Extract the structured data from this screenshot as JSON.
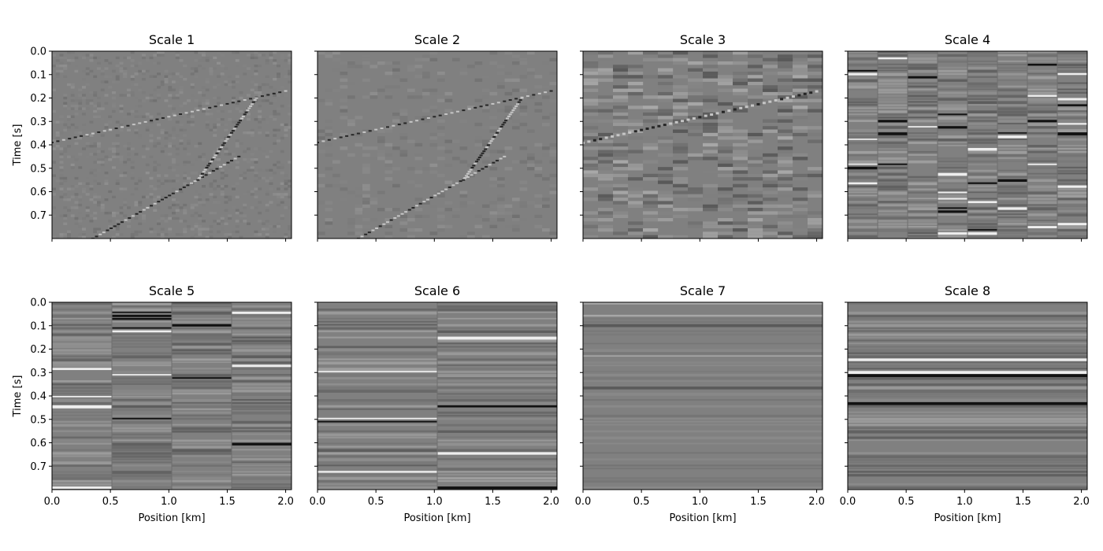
{
  "chart_data": {
    "type": "heatmap",
    "colormap": "gray",
    "layout": "2 rows x 4 panels",
    "xlabel": "Position [km]",
    "ylabel": "Time [s]",
    "xlim": [
      0.0,
      2.05
    ],
    "ylim": [
      0.8,
      0.0
    ],
    "x_ticks": [
      "0.0",
      "0.5",
      "1.0",
      "1.5",
      "2.0"
    ],
    "y_ticks": [
      "0.0",
      "0.1",
      "0.2",
      "0.3",
      "0.4",
      "0.5",
      "0.6",
      "0.7"
    ],
    "panels": [
      {
        "title": "Scale 1",
        "x_blocks": 64,
        "pattern": "dipping events with diffraction hyperbolae"
      },
      {
        "title": "Scale 2",
        "x_blocks": 32,
        "pattern": "dipping events with diffraction hyperbolae"
      },
      {
        "title": "Scale 3",
        "x_blocks": 16,
        "pattern": "dipping event, blocky"
      },
      {
        "title": "Scale 4",
        "x_blocks": 8,
        "pattern": "horizontal stripes"
      },
      {
        "title": "Scale 5",
        "x_blocks": 4,
        "pattern": "horizontal stripes"
      },
      {
        "title": "Scale 6",
        "x_blocks": 2,
        "pattern": "horizontal stripes"
      },
      {
        "title": "Scale 7",
        "x_blocks": 1,
        "pattern": "horizontal stripes"
      },
      {
        "title": "Scale 8",
        "x_blocks": 1,
        "pattern": "horizontal stripes"
      }
    ]
  }
}
